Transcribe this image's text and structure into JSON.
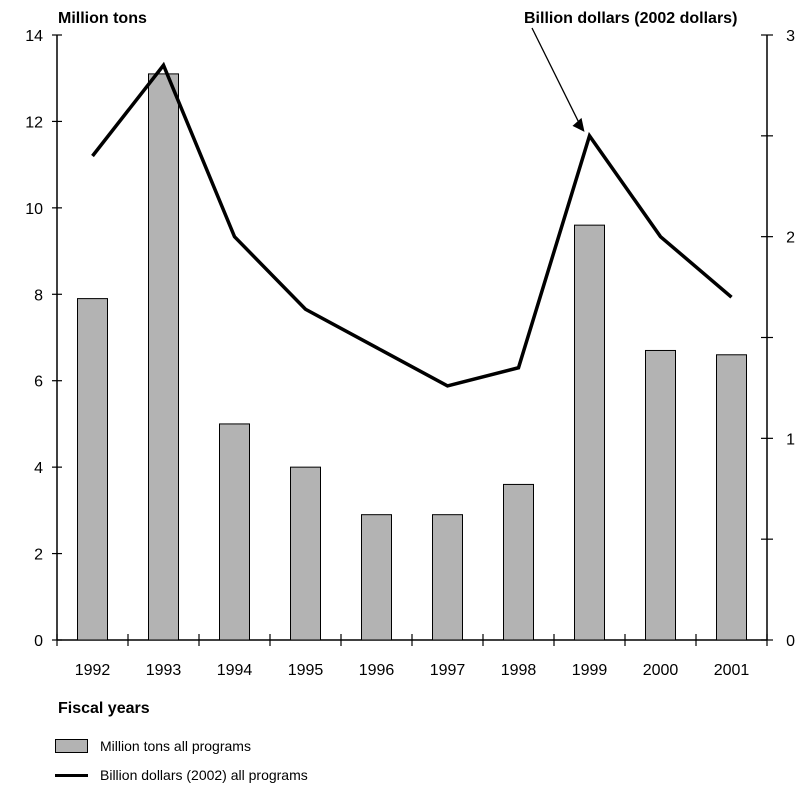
{
  "chart_data": {
    "type": "bar",
    "left_axis_title": "Million tons",
    "right_axis_title": "Billion dollars (2002 dollars)",
    "xlabel": "Fiscal years",
    "categories": [
      "1992",
      "1993",
      "1994",
      "1995",
      "1996",
      "1997",
      "1998",
      "1999",
      "2000",
      "2001"
    ],
    "y_left": {
      "lim": [
        0,
        14
      ],
      "ticks": [
        "0",
        "2",
        "4",
        "6",
        "8",
        "10",
        "12",
        "14"
      ]
    },
    "y_right": {
      "lim": [
        0,
        3
      ],
      "ticks": [
        "0",
        "1",
        "2",
        "3"
      ]
    },
    "series": [
      {
        "name": "Million tons all programs",
        "type": "bar",
        "axis": "left",
        "color": "#b3b3b3",
        "values": [
          7.9,
          13.1,
          5.0,
          4.0,
          2.9,
          2.9,
          3.6,
          9.6,
          6.7,
          6.6
        ]
      },
      {
        "name": "Billion dollars (2002) all programs",
        "type": "line",
        "axis": "right",
        "color": "#000000",
        "values": [
          2.4,
          2.85,
          2.0,
          1.64,
          1.45,
          1.26,
          1.35,
          2.5,
          2.0,
          1.7
        ]
      }
    ],
    "grid": false,
    "legend_position": "bottom-left"
  }
}
